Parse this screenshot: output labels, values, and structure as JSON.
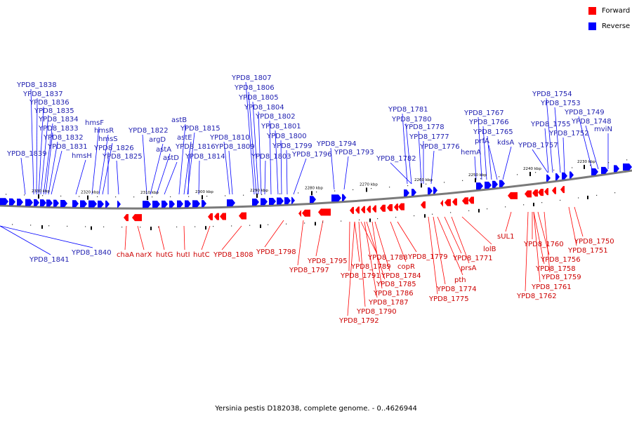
{
  "colors": {
    "forward": "#ff0000",
    "reverse": "#0000ff",
    "forward_text": "#cc0000",
    "reverse_text": "#1f1fb0",
    "backbone": "#7a7a7a"
  },
  "legend": [
    {
      "label": "Forward",
      "color": "#ff0000"
    },
    {
      "label": "Reverse",
      "color": "#0000ff"
    }
  ],
  "caption": "Yersinia pestis D182038, complete genome. - 0..4626944",
  "scale": [
    {
      "text": "2330 kbp"
    },
    {
      "text": "2320 kbp"
    },
    {
      "text": "2310 kbp"
    },
    {
      "text": "2300 kbp"
    },
    {
      "text": "2290 kbp"
    },
    {
      "text": "2280 kbp"
    },
    {
      "text": "2270 kbp"
    },
    {
      "text": "2260 kbp"
    },
    {
      "text": "2250 kbp"
    },
    {
      "text": "2240 kbp"
    },
    {
      "text": "2230 kbp"
    }
  ],
  "reverse_labels": [
    "YPD8_1838",
    "YPD8_1837",
    "YPD8_1836",
    "YPD8_1835",
    "YPD8_1834",
    "YPD8_1833",
    "YPD8_1832",
    "YPD8_1831",
    "YPD8_1839",
    "hmsH",
    "hmsF",
    "hmsR",
    "hmsS",
    "YPD8_1826",
    "YPD8_1825",
    "YPD8_1822",
    "argD",
    "astA",
    "astD",
    "astB",
    "YPD8_1815",
    "astE",
    "YPD8_1816",
    "YPD8_1814",
    "YPD8_1810",
    "YPD8_1809",
    "YPD8_1807",
    "YPD8_1806",
    "YPD8_1805",
    "YPD8_1804",
    "YPD8_1802",
    "YPD8_1801",
    "YPD8_1800",
    "YPD8_1799",
    "YPD8_1803",
    "YPD8_1796",
    "YPD8_1794",
    "YPD8_1793",
    "YPD8_1781",
    "YPD8_1780",
    "YPD8_1778",
    "YPD8_1777",
    "YPD8_1782",
    "YPD8_1776",
    "YPD8_1767",
    "YPD8_1766",
    "YPD8_1765",
    "prfA",
    "kdsA",
    "hemA",
    "YPD8_1754",
    "YPD8_1753",
    "YPD8_1749",
    "YPD8_1755",
    "YPD8_1748",
    "YPD8_1752",
    "mviN",
    "YPD8_1757",
    "YPD8_1840",
    "YPD8_1841"
  ],
  "forward_labels": [
    "chaA",
    "narX",
    "hutG",
    "hutI",
    "hutC",
    "YPD8_1808",
    "YPD8_1798",
    "YPD8_1795",
    "YPD8_1797",
    "YPD8_1788",
    "YPD8_1789",
    "copR",
    "YPD8_1791",
    "YPD8_1784",
    "YPD8_1785",
    "YPD8_1786",
    "YPD8_1787",
    "YPD8_1790",
    "YPD8_1792",
    "YPD8_1779",
    "YPD8_1771",
    "pth",
    "prsA",
    "YPD8_1774",
    "YPD8_1775",
    "lolB",
    "sUL1",
    "YPD8_1760",
    "YPD8_1756",
    "YPD8_1758",
    "YPD8_1759",
    "YPD8_1761",
    "YPD8_1762",
    "YPD8_1750",
    "YPD8_1751"
  ]
}
